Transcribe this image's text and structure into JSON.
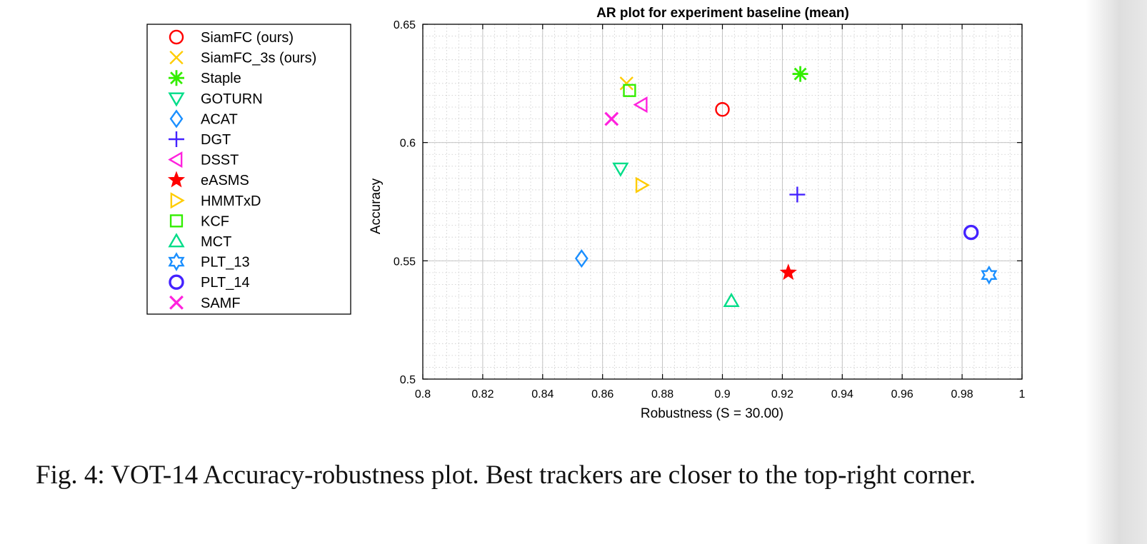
{
  "chart_data": {
    "type": "scatter",
    "title": "AR plot for experiment baseline (mean)",
    "xlabel": "Robustness (S = 30.00)",
    "ylabel": "Accuracy",
    "xlim": [
      0.8,
      1.0
    ],
    "ylim": [
      0.5,
      0.65
    ],
    "xticks": [
      "0.8",
      "0.82",
      "0.84",
      "0.86",
      "0.88",
      "0.9",
      "0.92",
      "0.94",
      "0.96",
      "0.98",
      "1"
    ],
    "yticks": [
      "0.5",
      "0.55",
      "0.6",
      "0.65"
    ],
    "grid": true,
    "legend_position": "outside-left",
    "series": [
      {
        "name": "SiamFC (ours)",
        "marker": "circle",
        "color": "#ff0000",
        "x": 0.9,
        "y": 0.614
      },
      {
        "name": "SiamFC_3s (ours)",
        "marker": "x",
        "color": "#ffcc00",
        "x": 0.868,
        "y": 0.625
      },
      {
        "name": "Staple",
        "marker": "asterisk",
        "color": "#33ee00",
        "x": 0.926,
        "y": 0.629
      },
      {
        "name": "GOTURN",
        "marker": "triangle-down",
        "color": "#00dd88",
        "x": 0.866,
        "y": 0.589
      },
      {
        "name": "ACAT",
        "marker": "diamond",
        "color": "#1a8fff",
        "x": 0.853,
        "y": 0.551
      },
      {
        "name": "DGT",
        "marker": "plus",
        "color": "#4422ff",
        "x": 0.925,
        "y": 0.578
      },
      {
        "name": "DSST",
        "marker": "triangle-left",
        "color": "#ff22dd",
        "x": 0.873,
        "y": 0.616
      },
      {
        "name": "eASMS",
        "marker": "star",
        "color": "#ff0000",
        "x": 0.922,
        "y": 0.545
      },
      {
        "name": "HMMTxD",
        "marker": "triangle-right",
        "color": "#ffcc00",
        "x": 0.873,
        "y": 0.582
      },
      {
        "name": "KCF",
        "marker": "square",
        "color": "#33ee00",
        "x": 0.869,
        "y": 0.622
      },
      {
        "name": "MCT",
        "marker": "triangle-up",
        "color": "#00dd88",
        "x": 0.903,
        "y": 0.533
      },
      {
        "name": "PLT_13",
        "marker": "hexagram",
        "color": "#1a8fff",
        "x": 0.989,
        "y": 0.544
      },
      {
        "name": "PLT_14",
        "marker": "circle-bold",
        "color": "#4422ff",
        "x": 0.983,
        "y": 0.562
      },
      {
        "name": "SAMF",
        "marker": "x-bold",
        "color": "#ff22dd",
        "x": 0.863,
        "y": 0.61
      }
    ]
  },
  "caption": "Fig. 4: VOT-14 Accuracy-robustness plot. Best trackers are closer to the top-right corner."
}
